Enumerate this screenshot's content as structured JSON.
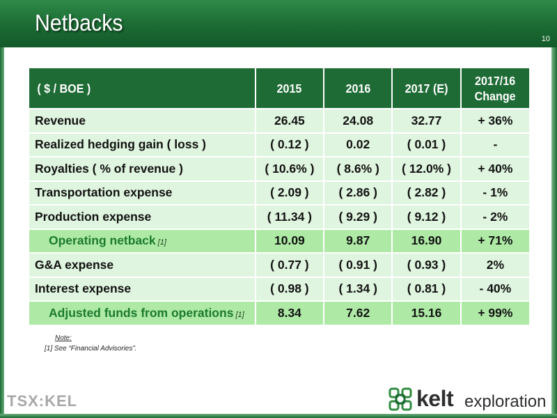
{
  "header": {
    "title": "Netbacks",
    "page_number": "10"
  },
  "table": {
    "columns": [
      "( $ / BOE )",
      "2015",
      "2016",
      "2017 (E)",
      [
        "2017/16",
        "Change"
      ]
    ],
    "rows": [
      {
        "label": "Revenue",
        "footnote": "",
        "highlight": false,
        "values": [
          "26.45",
          "24.08",
          "32.77",
          "+ 36%"
        ]
      },
      {
        "label": "Realized hedging gain ( loss )",
        "footnote": "",
        "highlight": false,
        "values": [
          "( 0.12 )",
          "0.02",
          "( 0.01 )",
          "-"
        ]
      },
      {
        "label": "Royalties ( % of revenue )",
        "footnote": "",
        "highlight": false,
        "values": [
          "( 10.6% )",
          "( 8.6% )",
          "( 12.0% )",
          "+ 40%"
        ]
      },
      {
        "label": "Transportation expense",
        "footnote": "",
        "highlight": false,
        "values": [
          "( 2.09 )",
          "( 2.86 )",
          "( 2.82 )",
          "- 1%"
        ]
      },
      {
        "label": "Production expense",
        "footnote": "",
        "highlight": false,
        "values": [
          "( 11.34 )",
          "( 9.29 )",
          "( 9.12 )",
          "- 2%"
        ]
      },
      {
        "label": "Operating netback",
        "footnote": "[1]",
        "highlight": true,
        "values": [
          "10.09",
          "9.87",
          "16.90",
          "+ 71%"
        ]
      },
      {
        "label": "G&A expense",
        "footnote": "",
        "highlight": false,
        "values": [
          "( 0.77 )",
          "( 0.91 )",
          "( 0.93 )",
          "2%"
        ]
      },
      {
        "label": "Interest expense",
        "footnote": "",
        "highlight": false,
        "values": [
          "( 0.98 )",
          "( 1.34 )",
          "( 0.81 )",
          "- 40%"
        ]
      },
      {
        "label": "Adjusted funds from operations",
        "footnote": "[1]",
        "highlight": true,
        "values": [
          "8.34",
          "7.62",
          "15.16",
          "+ 99%"
        ]
      }
    ]
  },
  "note": {
    "title": "Note:",
    "text": "[1] See “Financial Advisories”."
  },
  "footer": {
    "tsx_logo_text": "TSX:KEL",
    "kelt_logo": {
      "name": "kelt",
      "sub": "exploration"
    }
  },
  "colors": {
    "header_green": "#1b6a33",
    "table_header": "#1e6b35",
    "row_light": "#dff5df",
    "row_highlight": "#aeeaa6",
    "highlight_text": "#1b7a2e"
  }
}
